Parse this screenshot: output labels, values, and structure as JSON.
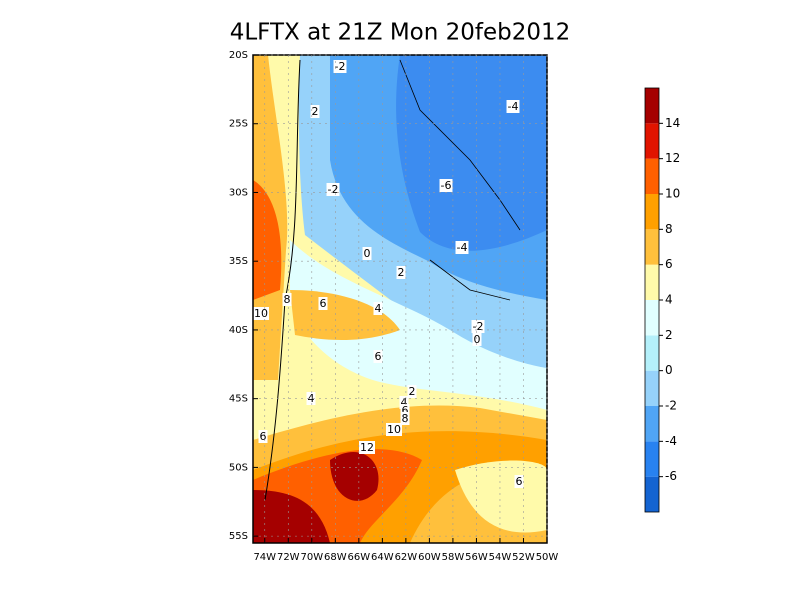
{
  "title": "4LFTX at 21Z Mon 20feb2012",
  "map": {
    "xlim": [
      -75,
      -50
    ],
    "ylim": [
      -55.5,
      -20
    ],
    "xticks": [
      {
        "value": -74,
        "label": "74W"
      },
      {
        "value": -72,
        "label": "72W"
      },
      {
        "value": -70,
        "label": "70W"
      },
      {
        "value": -68,
        "label": "68W"
      },
      {
        "value": -66,
        "label": "66W"
      },
      {
        "value": -64,
        "label": "64W"
      },
      {
        "value": -62,
        "label": "62W"
      },
      {
        "value": -60,
        "label": "60W"
      },
      {
        "value": -58,
        "label": "58W"
      },
      {
        "value": -56,
        "label": "56W"
      },
      {
        "value": -54,
        "label": "54W"
      },
      {
        "value": -52,
        "label": "52W"
      },
      {
        "value": -50,
        "label": "50W"
      }
    ],
    "yticks": [
      {
        "value": -20,
        "label": "20S"
      },
      {
        "value": -25,
        "label": "25S"
      },
      {
        "value": -30,
        "label": "30S"
      },
      {
        "value": -35,
        "label": "35S"
      },
      {
        "value": -40,
        "label": "40S"
      },
      {
        "value": -45,
        "label": "45S"
      },
      {
        "value": -50,
        "label": "50S"
      },
      {
        "value": -55,
        "label": "55S"
      }
    ],
    "contour_labels": [
      -2,
      2,
      -4,
      -6,
      -2,
      -4,
      0,
      2,
      8,
      6,
      4,
      10,
      -2,
      0,
      6,
      4,
      2,
      4,
      6,
      8,
      10,
      6,
      12,
      6
    ]
  },
  "colorbar": {
    "clim": [
      -8,
      16
    ],
    "levels": [
      -6,
      -4,
      -2,
      0,
      2,
      4,
      6,
      8,
      10,
      12,
      14
    ],
    "colors": [
      "#1464d2",
      "#2882f0",
      "#50a5f5",
      "#96d2fa",
      "#b4f0fa",
      "#e1ffff",
      "#fffaaa",
      "#ffc03c",
      "#ffa000",
      "#ff6000",
      "#e11400",
      "#a50000"
    ]
  }
}
